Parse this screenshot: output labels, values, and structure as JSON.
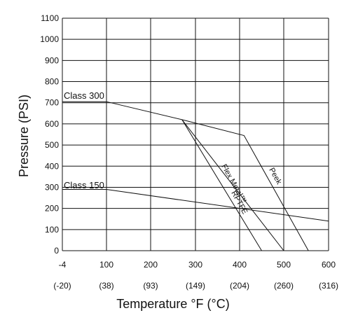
{
  "chart_data": {
    "type": "line",
    "title": "",
    "xlabel": "Temperature °F (°C)",
    "ylabel": "Pressure (PSI)",
    "xlim": [
      -4,
      600
    ],
    "ylim": [
      0,
      1100
    ],
    "grid": true,
    "x_ticks": [
      {
        "value": -4,
        "f": "-4",
        "c": "(-20)"
      },
      {
        "value": 100,
        "f": "100",
        "c": "(38)"
      },
      {
        "value": 200,
        "f": "200",
        "c": "(93)"
      },
      {
        "value": 300,
        "f": "300",
        "c": "(149)"
      },
      {
        "value": 400,
        "f": "400",
        "c": "(204)"
      },
      {
        "value": 500,
        "f": "500",
        "c": "(260)"
      },
      {
        "value": 600,
        "f": "600",
        "c": "(316)"
      }
    ],
    "y_ticks": [
      "0",
      "100",
      "200",
      "300",
      "400",
      "500",
      "600",
      "700",
      "800",
      "900",
      "1000",
      "1100"
    ],
    "series": [
      {
        "name": "Class 300",
        "points": [
          [
            -4,
            705
          ],
          [
            100,
            705
          ],
          [
            270,
            620
          ],
          [
            410,
            545
          ],
          [
            555,
            0
          ]
        ]
      },
      {
        "name": "Class 150",
        "points": [
          [
            -4,
            290
          ],
          [
            100,
            290
          ],
          [
            600,
            140
          ]
        ]
      },
      {
        "name": "Flex Metal™",
        "points": [
          [
            270,
            620
          ],
          [
            500,
            0
          ]
        ]
      },
      {
        "name": "RPTFE",
        "points": [
          [
            270,
            620
          ],
          [
            450,
            0
          ]
        ]
      },
      {
        "name": "Peek",
        "points": []
      }
    ]
  }
}
